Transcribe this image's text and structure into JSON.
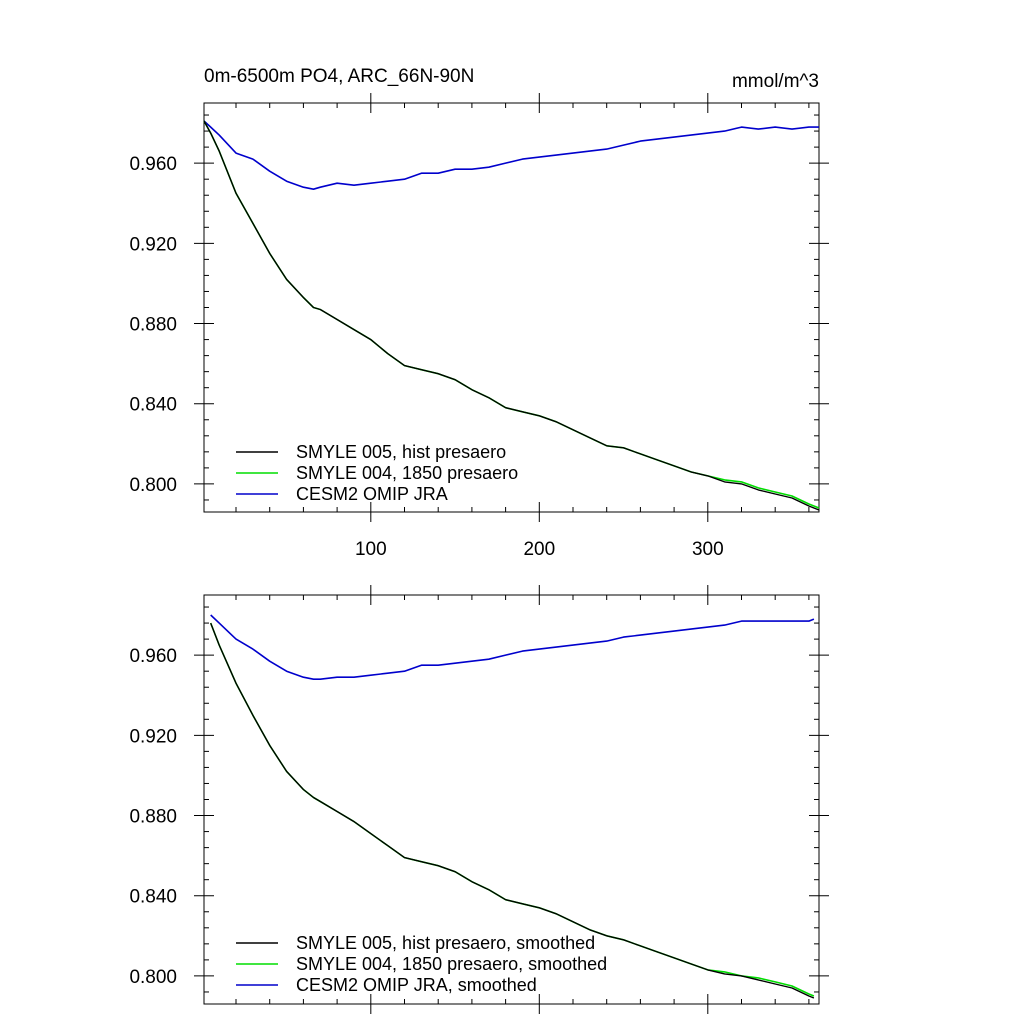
{
  "chart_data": [
    {
      "type": "line",
      "title_left": "0m-6500m PO4, ARC_66N-90N",
      "title_right": "mmol/m^3",
      "xlim": [
        1,
        366
      ],
      "ylim": [
        0.786,
        0.99
      ],
      "xticks": [
        100,
        200,
        300
      ],
      "xtick_labels": [
        "100",
        "200",
        "300"
      ],
      "yticks": [
        0.8,
        0.84,
        0.88,
        0.92,
        0.96
      ],
      "ytick_labels": [
        "0.800",
        "0.840",
        "0.880",
        "0.920",
        "0.960"
      ],
      "legend": [
        "SMYLE 005, hist presaero",
        "SMYLE 004, 1850 presaero",
        "CESM2 OMIP JRA"
      ],
      "series": [
        {
          "name": "SMYLE 005, hist presaero",
          "color": "#000000",
          "x": [
            1,
            5,
            10,
            20,
            30,
            40,
            50,
            60,
            66,
            70,
            80,
            90,
            100,
            110,
            120,
            130,
            140,
            150,
            160,
            170,
            180,
            190,
            200,
            210,
            220,
            230,
            240,
            250,
            260,
            270,
            280,
            290,
            300,
            310,
            320,
            330,
            340,
            350,
            360,
            366
          ],
          "values": [
            0.981,
            0.975,
            0.966,
            0.945,
            0.93,
            0.915,
            0.902,
            0.893,
            0.888,
            0.887,
            0.882,
            0.877,
            0.872,
            0.865,
            0.859,
            0.857,
            0.855,
            0.852,
            0.847,
            0.843,
            0.838,
            0.836,
            0.834,
            0.831,
            0.827,
            0.823,
            0.819,
            0.818,
            0.815,
            0.812,
            0.809,
            0.806,
            0.804,
            0.801,
            0.8,
            0.797,
            0.795,
            0.793,
            0.789,
            0.787
          ]
        },
        {
          "name": "SMYLE 004, 1850 presaero",
          "color": "#00dd00",
          "x": [
            1,
            5,
            10,
            20,
            30,
            40,
            50,
            60,
            66,
            70,
            80,
            90,
            100,
            110,
            120,
            130,
            140,
            150,
            160,
            170,
            180,
            190,
            200,
            210,
            220,
            230,
            240,
            250,
            260,
            270,
            280,
            290,
            300,
            310,
            320,
            330,
            340,
            350,
            360,
            366
          ],
          "values": [
            0.981,
            0.975,
            0.966,
            0.945,
            0.93,
            0.915,
            0.902,
            0.893,
            0.888,
            0.887,
            0.882,
            0.877,
            0.872,
            0.865,
            0.859,
            0.857,
            0.855,
            0.852,
            0.847,
            0.843,
            0.838,
            0.836,
            0.834,
            0.831,
            0.827,
            0.823,
            0.819,
            0.818,
            0.815,
            0.812,
            0.809,
            0.806,
            0.804,
            0.802,
            0.801,
            0.798,
            0.796,
            0.794,
            0.79,
            0.788
          ]
        },
        {
          "name": "CESM2 OMIP JRA",
          "color": "#0000cc",
          "x": [
            1,
            5,
            10,
            20,
            30,
            40,
            50,
            60,
            66,
            70,
            80,
            90,
            100,
            110,
            120,
            130,
            140,
            150,
            160,
            170,
            180,
            190,
            200,
            210,
            220,
            230,
            240,
            250,
            260,
            270,
            280,
            290,
            300,
            310,
            320,
            330,
            340,
            350,
            360,
            366
          ],
          "values": [
            0.981,
            0.978,
            0.974,
            0.965,
            0.962,
            0.956,
            0.951,
            0.948,
            0.947,
            0.948,
            0.95,
            0.949,
            0.95,
            0.951,
            0.952,
            0.955,
            0.955,
            0.957,
            0.957,
            0.958,
            0.96,
            0.962,
            0.963,
            0.964,
            0.965,
            0.966,
            0.967,
            0.969,
            0.971,
            0.972,
            0.973,
            0.974,
            0.975,
            0.976,
            0.978,
            0.977,
            0.978,
            0.977,
            0.978,
            0.978
          ]
        }
      ]
    },
    {
      "type": "line",
      "title_left": "",
      "title_right": "",
      "xlim": [
        1,
        366
      ],
      "ylim": [
        0.786,
        0.99
      ],
      "xticks": [
        100,
        200,
        300
      ],
      "xtick_labels": [
        "",
        "",
        ""
      ],
      "yticks": [
        0.8,
        0.84,
        0.88,
        0.92,
        0.96
      ],
      "ytick_labels": [
        "0.800",
        "0.840",
        "0.880",
        "0.920",
        "0.960"
      ],
      "legend": [
        "SMYLE 005, hist presaero, smoothed",
        "SMYLE 004, 1850 presaero, smoothed",
        "CESM2 OMIP JRA, smoothed"
      ],
      "series": [
        {
          "name": "SMYLE 005, hist presaero, smoothed",
          "color": "#000000",
          "x": [
            5,
            10,
            20,
            30,
            40,
            50,
            60,
            66,
            70,
            80,
            90,
            100,
            110,
            120,
            130,
            140,
            150,
            160,
            170,
            180,
            190,
            200,
            210,
            220,
            230,
            240,
            250,
            260,
            270,
            280,
            290,
            300,
            310,
            320,
            330,
            340,
            350,
            360,
            363
          ],
          "values": [
            0.976,
            0.965,
            0.946,
            0.93,
            0.915,
            0.902,
            0.893,
            0.889,
            0.887,
            0.882,
            0.877,
            0.871,
            0.865,
            0.859,
            0.857,
            0.855,
            0.852,
            0.847,
            0.843,
            0.838,
            0.836,
            0.834,
            0.831,
            0.827,
            0.823,
            0.82,
            0.818,
            0.815,
            0.812,
            0.809,
            0.806,
            0.803,
            0.801,
            0.8,
            0.798,
            0.796,
            0.794,
            0.79,
            0.789
          ]
        },
        {
          "name": "SMYLE 004, 1850 presaero, smoothed",
          "color": "#00dd00",
          "x": [
            5,
            10,
            20,
            30,
            40,
            50,
            60,
            66,
            70,
            80,
            90,
            100,
            110,
            120,
            130,
            140,
            150,
            160,
            170,
            180,
            190,
            200,
            210,
            220,
            230,
            240,
            250,
            260,
            270,
            280,
            290,
            300,
            310,
            320,
            330,
            340,
            350,
            360,
            363
          ],
          "values": [
            0.976,
            0.965,
            0.946,
            0.93,
            0.915,
            0.902,
            0.893,
            0.889,
            0.887,
            0.882,
            0.877,
            0.871,
            0.865,
            0.859,
            0.857,
            0.855,
            0.852,
            0.847,
            0.843,
            0.838,
            0.836,
            0.834,
            0.831,
            0.827,
            0.823,
            0.82,
            0.818,
            0.815,
            0.812,
            0.809,
            0.806,
            0.803,
            0.802,
            0.8,
            0.799,
            0.797,
            0.795,
            0.791,
            0.79
          ]
        },
        {
          "name": "CESM2 OMIP JRA, smoothed",
          "color": "#0000cc",
          "x": [
            5,
            10,
            20,
            30,
            40,
            50,
            60,
            66,
            70,
            80,
            90,
            100,
            110,
            120,
            130,
            140,
            150,
            160,
            170,
            180,
            190,
            200,
            210,
            220,
            230,
            240,
            250,
            260,
            270,
            280,
            290,
            300,
            310,
            320,
            330,
            340,
            350,
            360,
            363
          ],
          "values": [
            0.98,
            0.976,
            0.968,
            0.963,
            0.957,
            0.952,
            0.949,
            0.948,
            0.948,
            0.949,
            0.949,
            0.95,
            0.951,
            0.952,
            0.955,
            0.955,
            0.956,
            0.957,
            0.958,
            0.96,
            0.962,
            0.963,
            0.964,
            0.965,
            0.966,
            0.967,
            0.969,
            0.97,
            0.971,
            0.972,
            0.973,
            0.974,
            0.975,
            0.977,
            0.977,
            0.977,
            0.977,
            0.977,
            0.978
          ]
        }
      ]
    }
  ]
}
